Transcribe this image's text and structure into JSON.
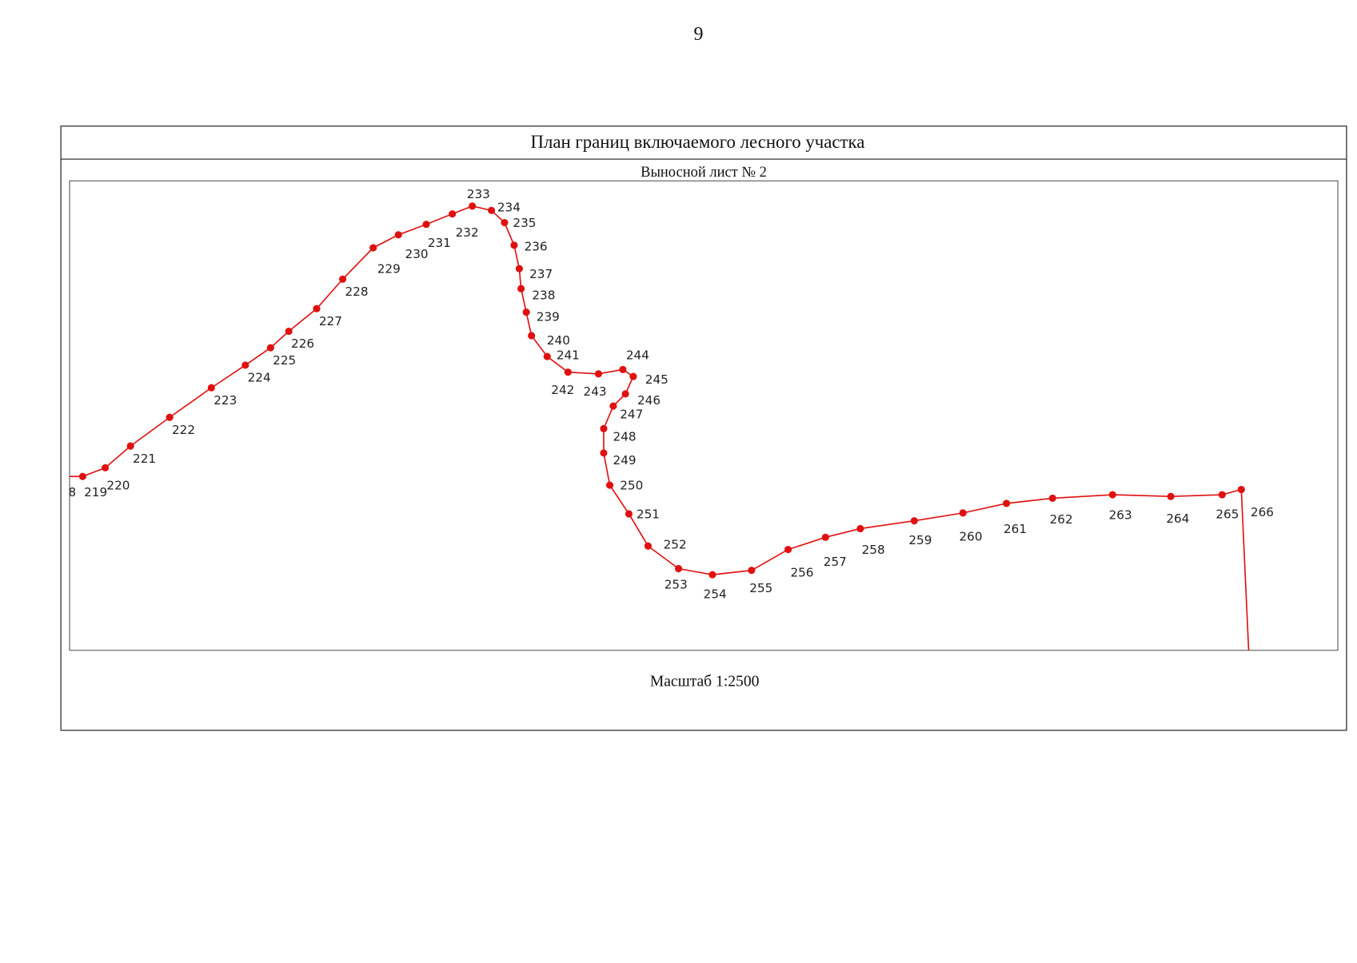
{
  "page_number": "9",
  "title": "План границ включаемого лесного участка",
  "subtitle": "Выносной лист № 2",
  "points": [
    "8",
    "219",
    "220",
    "221",
    "222",
    "223",
    "224",
    "225",
    "226",
    "227",
    "228",
    "229",
    "230",
    "231",
    "232",
    "233",
    "234",
    "235",
    "236",
    "237",
    "238",
    "239",
    "240",
    "241",
    "242",
    "243",
    "244",
    "245",
    "246",
    "247",
    "248",
    "249",
    "250",
    "251",
    "252",
    "253",
    "254",
    "255",
    "256",
    "257",
    "258",
    "259",
    "260",
    "261",
    "262",
    "263",
    "264",
    "265",
    "266"
  ],
  "scale": "Масштаб 1:2500"
}
